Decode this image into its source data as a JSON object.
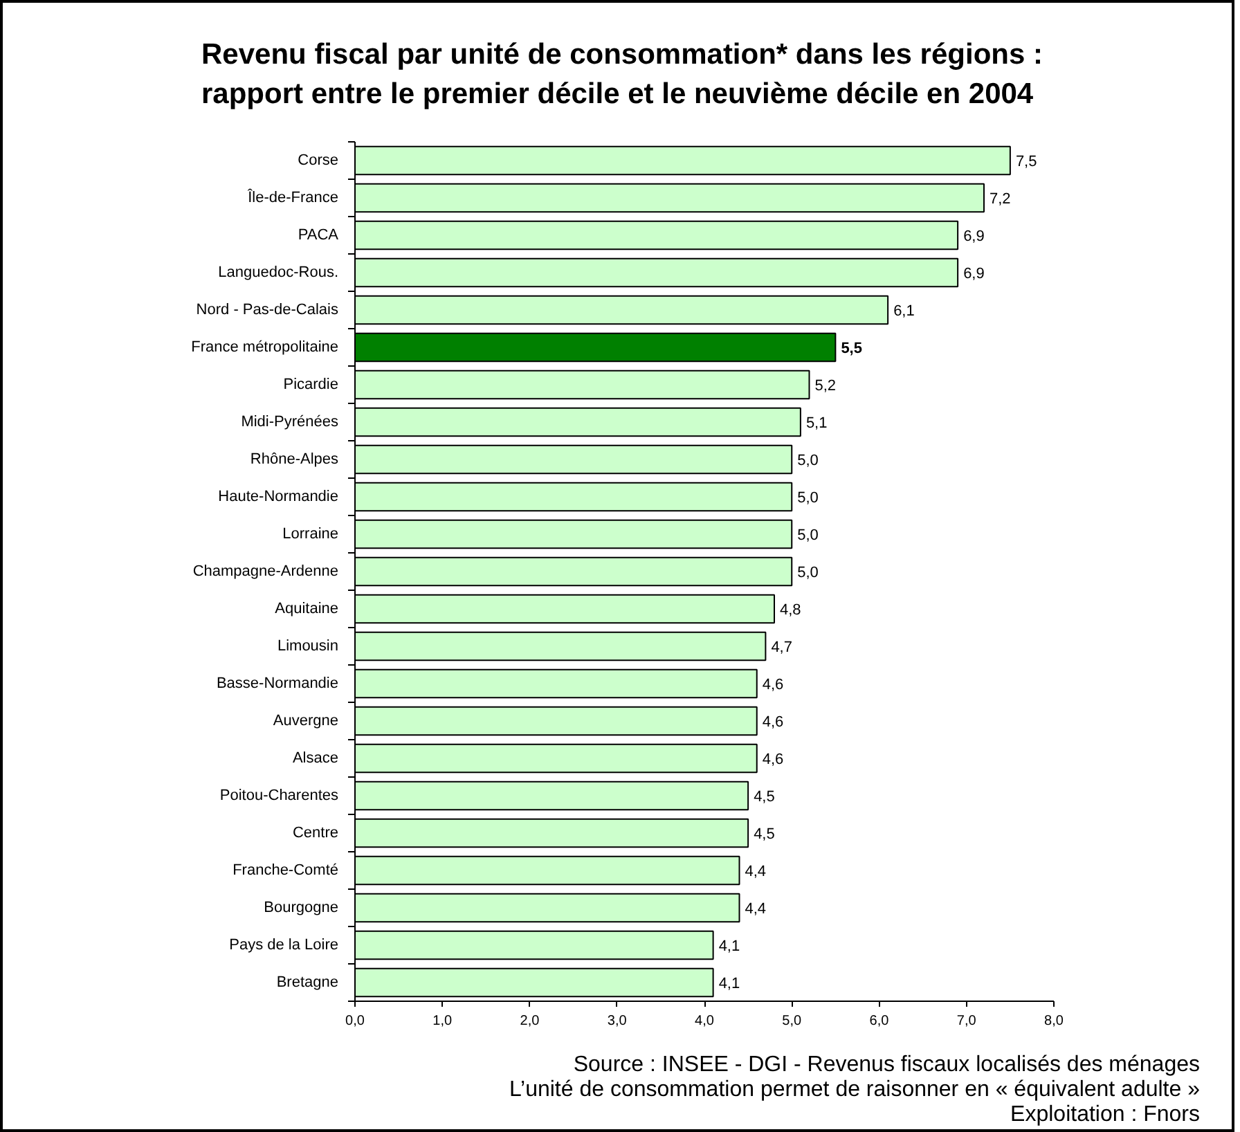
{
  "chart_data": {
    "type": "bar",
    "orientation": "horizontal",
    "title": "Revenu fiscal par unité de consommation* dans les régions :\nrapport entre le premier décile et le neuvième décile en 2004",
    "categories": [
      "Corse",
      "Île-de-France",
      "PACA",
      "Languedoc-Rous.",
      "Nord - Pas-de-Calais",
      "France métropolitaine",
      "Picardie",
      "Midi-Pyrénées",
      "Rhône-Alpes",
      "Haute-Normandie",
      "Lorraine",
      "Champagne-Ardenne",
      "Aquitaine",
      "Limousin",
      "Basse-Normandie",
      "Auvergne",
      "Alsace",
      "Poitou-Charentes",
      "Centre",
      "Franche-Comté",
      "Bourgogne",
      "Pays de la Loire",
      "Bretagne"
    ],
    "values": [
      7.5,
      7.2,
      6.9,
      6.9,
      6.1,
      5.5,
      5.2,
      5.1,
      5.0,
      5.0,
      5.0,
      5.0,
      4.8,
      4.7,
      4.6,
      4.6,
      4.6,
      4.5,
      4.5,
      4.4,
      4.4,
      4.1,
      4.1
    ],
    "colors": [
      "#ccffcc",
      "#ccffcc",
      "#ccffcc",
      "#ccffcc",
      "#ccffcc",
      "#008000",
      "#ccffcc",
      "#ccffcc",
      "#ccffcc",
      "#ccffcc",
      "#ccffcc",
      "#ccffcc",
      "#ccffcc",
      "#ccffcc",
      "#ccffcc",
      "#ccffcc",
      "#ccffcc",
      "#ccffcc",
      "#ccffcc",
      "#ccffcc",
      "#ccffcc",
      "#ccffcc",
      "#ccffcc"
    ],
    "value_labels": [
      "7,5",
      "7,2",
      "6,9",
      "6,9",
      "6,1",
      "5,5",
      "5,2",
      "5,1",
      "5,0",
      "5,0",
      "5,0",
      "5,0",
      "4,8",
      "4,7",
      "4,6",
      "4,6",
      "4,6",
      "4,5",
      "4,5",
      "4,4",
      "4,4",
      "4,1",
      "4,1"
    ],
    "xlim": [
      0,
      8
    ],
    "xticks": [
      {
        "value": 0,
        "label": "0,0"
      },
      {
        "value": 1,
        "label": "1,0"
      },
      {
        "value": 2,
        "label": "2,0"
      },
      {
        "value": 3,
        "label": "3,0"
      },
      {
        "value": 4,
        "label": "4,0"
      },
      {
        "value": 5,
        "label": "5,0"
      },
      {
        "value": 6,
        "label": "6,0"
      },
      {
        "value": 7,
        "label": "7,0"
      },
      {
        "value": 8,
        "label": "8,0"
      }
    ],
    "grid": false,
    "annotations": [
      "Source : INSEE - DGI - Revenus fiscaux localisés des ménages",
      "L’unité de consommation permet de raisonner en « équivalent adulte »",
      "Exploitation : Fnors"
    ]
  }
}
